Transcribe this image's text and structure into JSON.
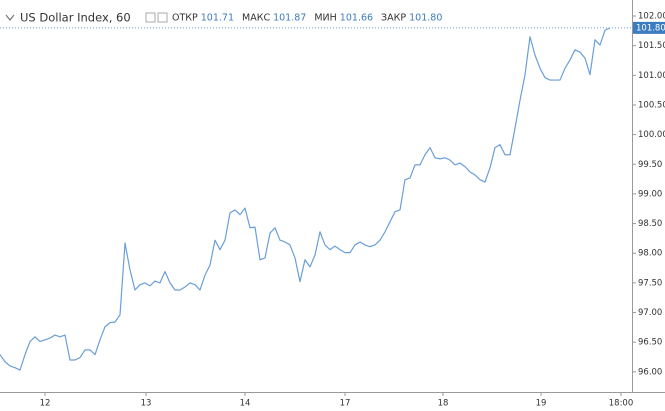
{
  "chart_data": {
    "type": "line",
    "title": "US Dollar Index, 60",
    "header": [
      {
        "label": "ОТКР",
        "value": "101.71"
      },
      {
        "label": "МАКС",
        "value": "101.87"
      },
      {
        "label": "МИН",
        "value": "101.66"
      },
      {
        "label": "ЗАКР",
        "value": "101.80"
      }
    ],
    "last_price": {
      "value": 101.8,
      "label": "101.80"
    },
    "color": "#6a9fd8",
    "x": [
      0,
      1,
      2,
      3,
      4,
      5,
      6,
      7,
      8,
      9,
      10,
      11,
      12,
      13,
      14,
      15,
      16,
      17,
      18,
      19,
      20,
      21,
      22,
      23,
      24,
      25,
      26,
      27,
      28,
      29,
      30,
      31,
      32,
      33,
      34,
      35,
      36,
      37,
      38,
      39,
      40,
      41,
      42,
      43,
      44,
      45,
      46,
      47,
      48,
      49,
      50,
      51,
      52,
      53,
      54,
      55,
      56,
      57,
      58,
      59,
      60,
      61,
      62,
      63,
      64,
      65,
      66,
      67,
      68,
      69,
      70,
      71,
      72,
      73,
      74,
      75,
      76,
      77,
      78,
      79,
      80,
      81,
      82,
      83,
      84,
      85,
      86,
      87,
      88,
      89,
      90,
      91,
      92,
      93,
      94,
      95,
      96,
      97,
      98,
      99,
      100,
      101,
      102,
      103,
      104,
      105,
      106,
      107,
      108,
      109,
      110,
      111,
      112,
      113,
      114,
      115,
      116,
      117,
      118,
      119,
      120,
      121,
      122
    ],
    "values": [
      96.29,
      96.17,
      96.1,
      96.07,
      96.03,
      96.29,
      96.51,
      96.59,
      96.51,
      96.54,
      96.57,
      96.62,
      96.59,
      96.62,
      96.2,
      96.2,
      96.24,
      96.37,
      96.37,
      96.29,
      96.54,
      96.76,
      96.83,
      96.84,
      96.96,
      98.17,
      97.72,
      97.38,
      97.47,
      97.5,
      97.45,
      97.53,
      97.5,
      97.69,
      97.5,
      97.38,
      97.38,
      97.43,
      97.5,
      97.47,
      97.38,
      97.63,
      97.8,
      98.22,
      98.06,
      98.22,
      98.68,
      98.73,
      98.65,
      98.76,
      98.43,
      98.44,
      97.89,
      97.92,
      98.34,
      98.43,
      98.22,
      98.19,
      98.14,
      97.92,
      97.52,
      97.89,
      97.77,
      97.97,
      98.36,
      98.14,
      98.06,
      98.12,
      98.06,
      98.01,
      98.01,
      98.14,
      98.19,
      98.14,
      98.11,
      98.14,
      98.22,
      98.36,
      98.53,
      98.7,
      98.73,
      99.24,
      99.27,
      99.49,
      99.49,
      99.66,
      99.78,
      99.61,
      99.59,
      99.61,
      99.57,
      99.49,
      99.52,
      99.46,
      99.37,
      99.32,
      99.24,
      99.2,
      99.44,
      99.78,
      99.83,
      99.66,
      99.66,
      100.11,
      100.58,
      101.01,
      101.65,
      101.34,
      101.12,
      100.96,
      100.92,
      100.92,
      100.92,
      101.12,
      101.26,
      101.43,
      101.39,
      101.29,
      101.01,
      101.6,
      101.51,
      101.76,
      101.8
    ],
    "xlim": [
      0,
      126.4
    ],
    "xticks": [
      {
        "value": 9,
        "label": "12"
      },
      {
        "value": 29.2,
        "label": "13"
      },
      {
        "value": 49,
        "label": "14"
      },
      {
        "value": 69,
        "label": "17"
      },
      {
        "value": 88.6,
        "label": "18"
      },
      {
        "value": 108.2,
        "label": "19"
      },
      {
        "value": 124.2,
        "label": "18:00"
      }
    ],
    "ylim": [
      95.66,
      102.27
    ],
    "yticks": [
      {
        "value": 96,
        "label": "96.00"
      },
      {
        "value": 96.5,
        "label": "96.50"
      },
      {
        "value": 97,
        "label": "97.00"
      },
      {
        "value": 97.5,
        "label": "97.50"
      },
      {
        "value": 98,
        "label": "98.00"
      },
      {
        "value": 98.5,
        "label": "98.50"
      },
      {
        "value": 99,
        "label": "99.00"
      },
      {
        "value": 99.5,
        "label": "99.50"
      },
      {
        "value": 100,
        "label": "100.00"
      },
      {
        "value": 100.5,
        "label": "100.50"
      },
      {
        "value": 101,
        "label": "101.00"
      },
      {
        "value": 101.5,
        "label": "101.50"
      },
      {
        "value": 102,
        "label": "102.00"
      }
    ],
    "grid": false
  }
}
